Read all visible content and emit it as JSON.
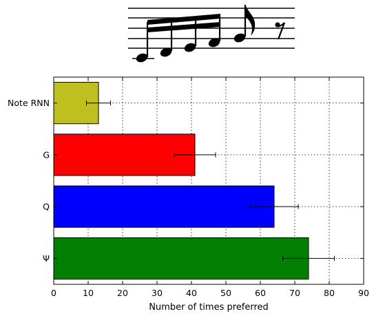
{
  "chart_data": {
    "type": "bar",
    "orientation": "horizontal",
    "title": "",
    "xlabel": "Number of times preferred",
    "ylabel": "",
    "xlim": [
      0,
      90
    ],
    "xticks": [
      "0",
      "10",
      "20",
      "30",
      "40",
      "50",
      "60",
      "70",
      "80",
      "90"
    ],
    "grid": true,
    "legend": "none",
    "categories": [
      "Note RNN",
      "G",
      "Q",
      "Ψ"
    ],
    "values": [
      13,
      41,
      64,
      74
    ],
    "errors": [
      3.5,
      6,
      7,
      7.5
    ],
    "colors": [
      "#bfbf1f",
      "#ff0000",
      "#0000ff",
      "#007f00"
    ]
  },
  "header_illustration": {
    "icon": "music-staff-sixteenth-notes-icon"
  }
}
